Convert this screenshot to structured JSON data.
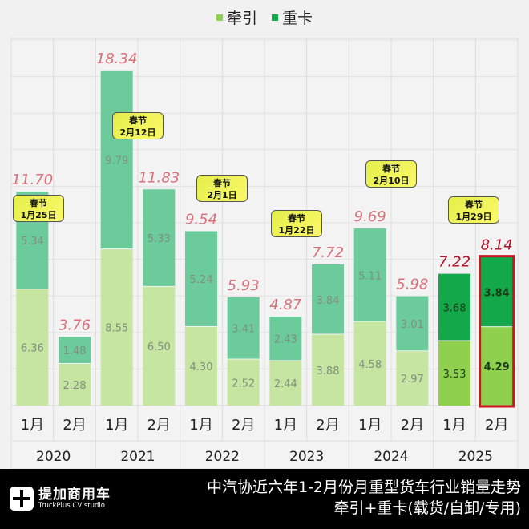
{
  "chart_data": {
    "type": "bar",
    "stacked": true,
    "legend": {
      "position": "top",
      "items": [
        {
          "name": "牵引",
          "color": "#8fd14f"
        },
        {
          "name": "重卡",
          "color": "#13a84a"
        }
      ]
    },
    "years": [
      "2020",
      "2021",
      "2022",
      "2023",
      "2024",
      "2025"
    ],
    "months": [
      "1月",
      "2月"
    ],
    "series": [
      {
        "name": "牵引",
        "values": [
          6.36,
          2.28,
          8.55,
          6.5,
          4.3,
          2.52,
          2.44,
          3.88,
          4.58,
          2.97,
          3.53,
          4.29
        ]
      },
      {
        "name": "重卡",
        "values": [
          5.34,
          1.48,
          9.79,
          5.33,
          5.24,
          3.41,
          2.43,
          3.84,
          5.11,
          3.01,
          3.68,
          3.84
        ]
      }
    ],
    "totals": [
      "11.70",
      "3.76",
      "18.34",
      "11.83",
      "9.54",
      "5.93",
      "4.87",
      "7.72",
      "9.69",
      "5.98",
      "7.22",
      "8.14"
    ],
    "ylim": [
      0,
      20
    ],
    "grid": true,
    "highlight_index": 11,
    "annotations": [
      {
        "year": "2020",
        "line1": "春节",
        "line2": "1月25日"
      },
      {
        "year": "2021",
        "line1": "春节",
        "line2": "2月12日"
      },
      {
        "year": "2022",
        "line1": "春节",
        "line2": "2月1日"
      },
      {
        "year": "2023",
        "line1": "春节",
        "line2": "1月22日"
      },
      {
        "year": "2024",
        "line1": "春节",
        "line2": "2月10日"
      },
      {
        "year": "2025",
        "line1": "春节",
        "line2": "1月29日"
      }
    ]
  },
  "watermark": {
    "cn": "提加商用车",
    "en": "TruckPlus CV studio"
  },
  "footer": {
    "logo_cn": "提加商用车",
    "logo_en": "TruckPlus CV studio",
    "title_line1": "中汽协近六年1-2月份月重型货车行业销量走势",
    "title_line2": "牵引+重卡(载货/自卸/专用)"
  }
}
